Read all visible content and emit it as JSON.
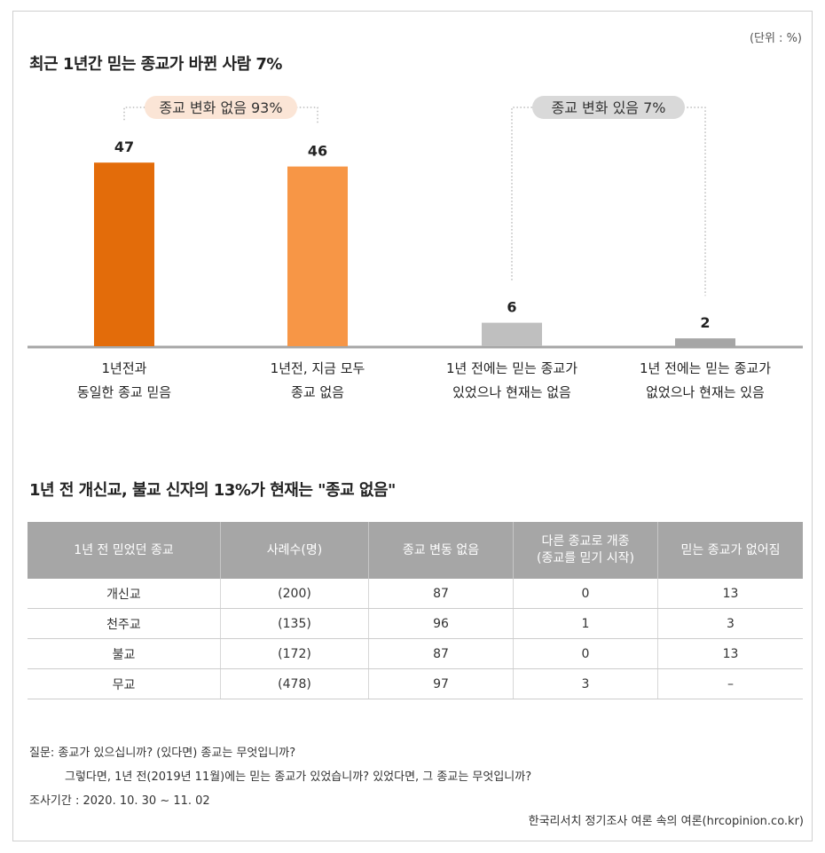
{
  "unit": "(단위 : %)",
  "chart_data": {
    "type": "bar",
    "title": "최근 1년간 믿는 종교가 바뀐 사람 7%",
    "categories": [
      [
        "1년전과",
        "동일한 종교 믿음"
      ],
      [
        "1년전, 지금 모두",
        "종교 없음"
      ],
      [
        "1년 전에는 믿는 종교가",
        "있었으나 현재는 없음"
      ],
      [
        "1년 전에는 믿는 종교가",
        "없었으나 현재는 있음"
      ]
    ],
    "values": [
      47,
      46,
      6,
      2
    ],
    "value_labels": [
      "47",
      "46",
      "6",
      "2"
    ],
    "colors": [
      "#e36c0a",
      "#f79646",
      "#bfbfbf",
      "#a6a6a6"
    ],
    "groups": [
      {
        "label": "종교 변화 없음 93%",
        "members": [
          0,
          1
        ],
        "fill": "#fbe5d6",
        "text": "#333333"
      },
      {
        "label": "종교 변화 있음 7%",
        "members": [
          2,
          3
        ],
        "fill": "#d9d9d9",
        "text": "#333333"
      }
    ],
    "ylim": [
      0,
      50
    ]
  },
  "table": {
    "title": "1년 전 개신교, 불교 신자의 13%가 현재는 \"종교 없음\"",
    "headers": [
      [
        "1년 전 믿었던 종교"
      ],
      [
        "사례수(명)"
      ],
      [
        "종교 변동 없음"
      ],
      [
        "다른 종교로 개종",
        "(종교를 믿기 시작)"
      ],
      [
        "믿는 종교가 없어짐"
      ]
    ],
    "rows": [
      [
        "개신교",
        "(200)",
        "87",
        "0",
        "13"
      ],
      [
        "천주교",
        "(135)",
        "96",
        "1",
        "3"
      ],
      [
        "불교",
        "(172)",
        "87",
        "0",
        "13"
      ],
      [
        "무교",
        "(478)",
        "97",
        "3",
        "–"
      ]
    ]
  },
  "notes": {
    "question_line1": "질문:  종교가 있으십니까? (있다면) 종교는 무엇입니까?",
    "question_line2": "그렇다면, 1년 전(2019년 11월)에는 믿는 종교가 있었습니까? 있었다면, 그 종교는 무엇입니까?",
    "survey_period": "조사기간 : 2020. 10. 30 ~ 11. 02",
    "source": "한국리서치 정기조사 여론 속의 여론(hrcopinion.co.kr)"
  }
}
